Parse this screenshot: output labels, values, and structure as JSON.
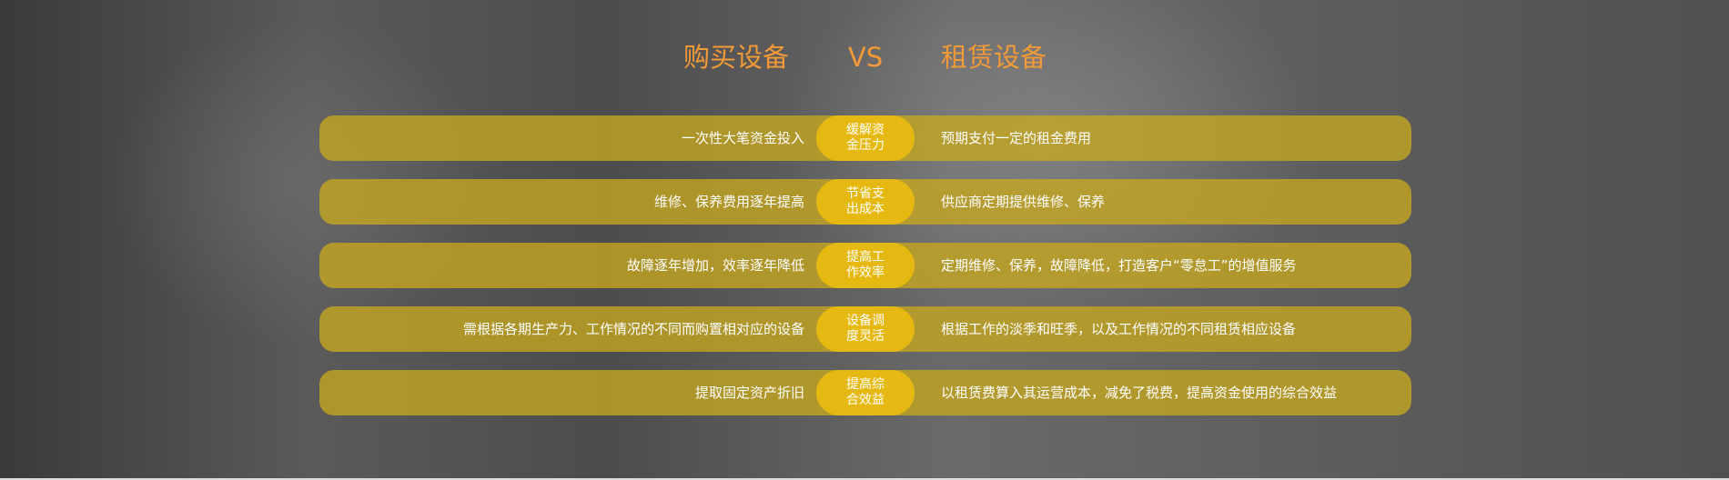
{
  "header": {
    "left_title": "购买设备",
    "vs": "VS",
    "right_title": "租赁设备"
  },
  "colors": {
    "title": "#f29a38",
    "bar": "#c8a81e",
    "pill": "#e6b912"
  },
  "rows": [
    {
      "buy": "一次性大笔资金投入",
      "benefit": "缓解资金压力",
      "lease": "预期支付一定的租金费用"
    },
    {
      "buy": "维修、保养费用逐年提高",
      "benefit": "节省支出成本",
      "lease": "供应商定期提供维修、保养"
    },
    {
      "buy": "故障逐年增加，效率逐年降低",
      "benefit": "提高工作效率",
      "lease": "定期维修、保养，故障降低，打造客户“零怠工”的增值服务"
    },
    {
      "buy": "需根据各期生产力、工作情况的不同而购置相对应的设备",
      "benefit": "设备调度灵活",
      "lease": "根据工作的淡季和旺季，以及工作情况的不同租赁相应设备"
    },
    {
      "buy": "提取固定资产折旧",
      "benefit": "提高综合效益",
      "lease": "以租赁费算入其运营成本，减免了税费，提高资金使用的综合效益"
    }
  ]
}
